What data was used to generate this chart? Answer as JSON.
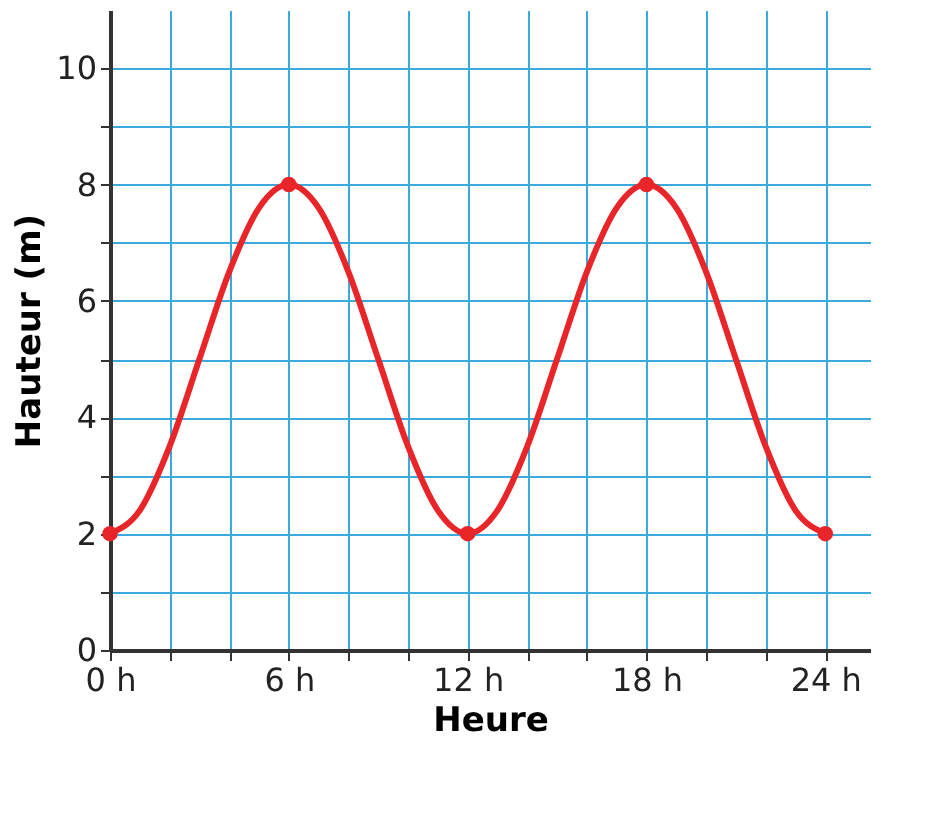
{
  "chart_data": {
    "type": "line",
    "xlabel": "Heure",
    "ylabel": "Hauteur (m)",
    "xlim": [
      0,
      25.5
    ],
    "ylim": [
      0,
      11
    ],
    "xticks": [
      {
        "value": 0,
        "label": "0 h"
      },
      {
        "value": 2,
        "label": null
      },
      {
        "value": 4,
        "label": null
      },
      {
        "value": 6,
        "label": "6 h"
      },
      {
        "value": 8,
        "label": null
      },
      {
        "value": 10,
        "label": null
      },
      {
        "value": 12,
        "label": "12 h"
      },
      {
        "value": 14,
        "label": null
      },
      {
        "value": 16,
        "label": null
      },
      {
        "value": 18,
        "label": "18 h"
      },
      {
        "value": 20,
        "label": null
      },
      {
        "value": 22,
        "label": null
      },
      {
        "value": 24,
        "label": "24 h"
      }
    ],
    "yticks": [
      0,
      {
        "value": 1,
        "label": null
      },
      2,
      {
        "value": 3,
        "label": null
      },
      4,
      {
        "value": 5,
        "label": null
      },
      6,
      {
        "value": 7,
        "label": null
      },
      8,
      {
        "value": 9,
        "label": null
      },
      10
    ],
    "grid": true,
    "series": [
      {
        "color": "#e8262a",
        "marker": "none",
        "x": [
          0,
          1,
          2,
          3,
          4,
          5,
          6,
          7,
          8,
          9,
          10,
          11,
          12,
          13,
          14,
          15,
          16,
          17,
          18,
          19,
          20,
          21,
          22,
          23,
          24
        ],
        "values": [
          2,
          2.4,
          3.5,
          5,
          6.5,
          7.6,
          8,
          7.6,
          6.5,
          5,
          3.5,
          2.4,
          2,
          2.4,
          3.5,
          5,
          6.5,
          7.6,
          8,
          7.6,
          6.5,
          5,
          3.5,
          2.4,
          2
        ]
      },
      {
        "type": "scatter",
        "color": "#e8262a",
        "marker": "circle",
        "x": [
          0,
          6,
          12,
          18,
          24
        ],
        "values": [
          2,
          8,
          2,
          8,
          2
        ]
      }
    ]
  }
}
